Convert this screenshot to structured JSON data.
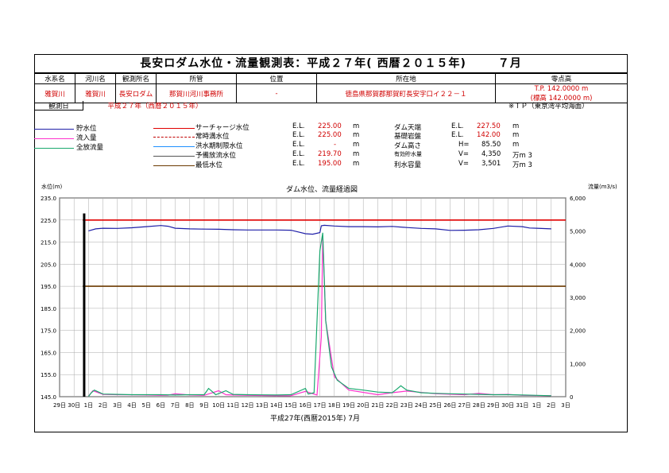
{
  "title": {
    "main": "長安ロダム水位・流量観測表：平成２７年(",
    "era": "西暦２０１５年)",
    "month": "７月"
  },
  "info": {
    "headers": [
      "水系名",
      "河川名",
      "観測所名",
      "所管",
      "位置",
      "所在地",
      "零点高"
    ],
    "values": [
      "雅賀川",
      "雅賀川",
      "長安ロダム",
      "那賀川河川事務所",
      "-",
      "徳島県那賀郡那賀町長安字口イ２２－１",
      "T.P. 142.0000 m"
    ],
    "zero_alt": "(標高 142.0000 m)",
    "obs_year_label": "観測日",
    "obs_year_value": "平成２７年（西暦２０１５年）",
    "datum_note": "※ＴＰ（東京湾平均海面）"
  },
  "legend": {
    "left": [
      {
        "label": "貯水位",
        "color": "#1f1fa8"
      },
      {
        "label": "流入量",
        "color": "#ff33cc"
      },
      {
        "label": "全放流量",
        "color": "#1aa86e"
      }
    ],
    "mid": [
      {
        "label": "サーチャージ水位",
        "color": "#e00000",
        "dash": false,
        "el": "E.L.",
        "value": "225.00",
        "unit": "m"
      },
      {
        "label": "常時満水位",
        "color": "#c00000",
        "dash": true,
        "el": "E.L.",
        "value": "225.00",
        "unit": "m"
      },
      {
        "label": "洪水期制限水位",
        "color": "#1e90ff",
        "dash": false,
        "el": "E.L.",
        "value": "-",
        "unit": "m"
      },
      {
        "label": "予備放流水位",
        "color": "#555555",
        "dash": false,
        "el": "E.L.",
        "value": "219.70",
        "unit": "m"
      },
      {
        "label": "最低水位",
        "color": "#6b3a00",
        "dash": false,
        "el": "E.L.",
        "value": "195.00",
        "unit": "m"
      }
    ],
    "right": [
      {
        "label": "ダム天端",
        "pre": "E.L.",
        "value": "227.50",
        "unit": "m"
      },
      {
        "label": "基礎岩盤",
        "pre": "E.L.",
        "value": "142.00",
        "unit": "m"
      },
      {
        "label": "ダム高さ",
        "pre": "H=",
        "value": "85.50",
        "unit": "m"
      },
      {
        "label": "有効貯水量",
        "pre": "V=",
        "value": "4,350",
        "unit": "万m 3"
      },
      {
        "label": "利水容量",
        "pre": "V=",
        "value": "3,501",
        "unit": "万m 3"
      }
    ]
  },
  "chart_data": {
    "type": "line",
    "title": "ダム水位、流量経過図",
    "ylabel_left": "水位(m)",
    "ylabel_right": "流量(m3/s)",
    "xlabel": "平成27年(西暦2015年) 7月",
    "ylim_left": [
      145,
      235
    ],
    "ylim_right": [
      0,
      6000
    ],
    "yticks_left": [
      "145.0",
      "155.0",
      "165.0",
      "175.0",
      "185.0",
      "195.0",
      "205.0",
      "215.0",
      "225.0",
      "235.0"
    ],
    "yticks_right": [
      "0",
      "1,000",
      "2,000",
      "3,000",
      "4,000",
      "5,000",
      "6,000"
    ],
    "xticks": [
      "29日",
      "30日",
      "1日",
      "2日",
      "3日",
      "4日",
      "5日",
      "6日",
      "7日",
      "8日",
      "9日",
      "10日",
      "11日",
      "12日",
      "13日",
      "14日",
      "15日",
      "16日",
      "17日",
      "18日",
      "19日",
      "20日",
      "21日",
      "22日",
      "23日",
      "24日",
      "25日",
      "26日",
      "27日",
      "28日",
      "29日",
      "30日",
      "31日",
      "1日",
      "2日",
      "3日"
    ],
    "grid": true,
    "reference_lines": [
      {
        "name": "サーチャージ水位",
        "y": 225.0,
        "color": "#e00000"
      },
      {
        "name": "最低水位",
        "y": 195.0,
        "color": "#6b3a00"
      }
    ],
    "series": [
      {
        "name": "貯水位",
        "axis": "left",
        "color": "#1f1fa8",
        "x": [
          2.0,
          2.5,
          3.0,
          4.0,
          5.0,
          6.0,
          7.0,
          7.5,
          8.0,
          9.0,
          10.0,
          11.0,
          12.0,
          13.0,
          14.0,
          15.0,
          16.0,
          17.0,
          17.5,
          18.0,
          18.1,
          18.3,
          19.0,
          20.0,
          21.0,
          22.0,
          23.0,
          24.0,
          25.0,
          26.0,
          27.0,
          28.0,
          29.0,
          30.0,
          31.0,
          32.0,
          32.5,
          33.0,
          34.0
        ],
        "y": [
          220.1,
          221.0,
          221.3,
          221.2,
          221.5,
          222.0,
          222.5,
          222.2,
          221.3,
          221.0,
          220.9,
          220.8,
          220.6,
          220.5,
          220.5,
          220.5,
          220.4,
          218.8,
          218.6,
          219.3,
          222.4,
          222.6,
          222.3,
          222.0,
          222.0,
          221.9,
          222.1,
          221.6,
          221.2,
          221.0,
          220.3,
          220.4,
          220.6,
          221.2,
          222.3,
          222.0,
          221.4,
          221.3,
          221.0
        ]
      },
      {
        "name": "流入量",
        "axis": "right",
        "color": "#ff33cc",
        "x": [
          2.0,
          2.3,
          3.0,
          4.0,
          5.0,
          6.0,
          7.0,
          7.5,
          8.0,
          9.0,
          10.0,
          11.0,
          11.5,
          12.0,
          13.0,
          14.0,
          15.0,
          16.0,
          17.0,
          17.8,
          18.1,
          18.2,
          18.4,
          19.0,
          20.0,
          22.0,
          23.0,
          24.0,
          26.0,
          28.0,
          29.0,
          30.0,
          31.0,
          32.0,
          34.0
        ],
        "y": [
          20,
          180,
          70,
          60,
          55,
          50,
          40,
          45,
          90,
          50,
          40,
          180,
          60,
          50,
          40,
          35,
          30,
          30,
          160,
          50,
          1800,
          4850,
          2300,
          600,
          200,
          60,
          120,
          170,
          90,
          60,
          100,
          60,
          70,
          40,
          30
        ]
      },
      {
        "name": "全放流量",
        "axis": "right",
        "color": "#1aa86e",
        "x": [
          2.0,
          2.2,
          2.4,
          3.0,
          4.0,
          5.0,
          6.0,
          7.0,
          8.0,
          9.0,
          10.0,
          10.3,
          10.8,
          11.5,
          12.0,
          13.0,
          14.0,
          15.0,
          16.0,
          17.0,
          17.2,
          17.6,
          18.0,
          18.2,
          18.4,
          18.8,
          19.2,
          20.0,
          21.0,
          22.0,
          23.0,
          23.3,
          23.6,
          24.0,
          25.0,
          26.0,
          27.0,
          28.0,
          29.0,
          30.0,
          31.0,
          32.0,
          33.0,
          34.0
        ],
        "y": [
          10,
          120,
          200,
          80,
          70,
          60,
          60,
          60,
          50,
          60,
          60,
          250,
          60,
          180,
          70,
          60,
          55,
          50,
          60,
          250,
          80,
          120,
          4400,
          4950,
          2300,
          900,
          500,
          250,
          200,
          140,
          120,
          220,
          330,
          200,
          120,
          100,
          90,
          80,
          70,
          60,
          60,
          50,
          40,
          30
        ]
      }
    ]
  }
}
